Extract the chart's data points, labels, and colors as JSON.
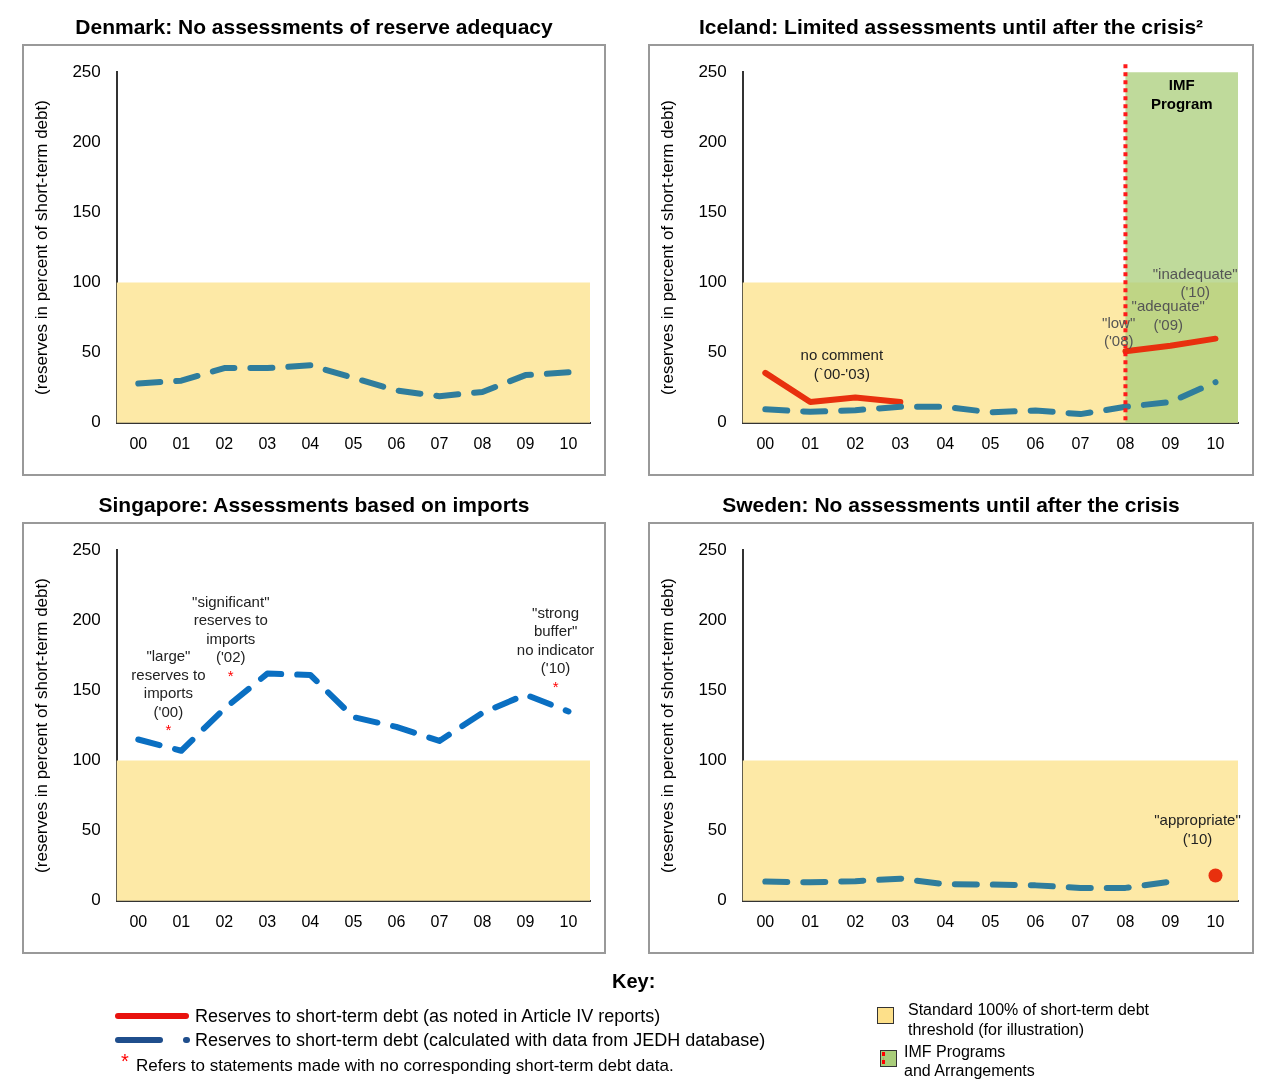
{
  "chart_data": [
    {
      "type": "line",
      "title": "Denmark: No assessments of reserve adequacy",
      "ylabel": "(reserves in percent of short-term debt)",
      "categories": [
        "00",
        "01",
        "02",
        "03",
        "04",
        "05",
        "06",
        "07",
        "08",
        "09",
        "10"
      ],
      "series": [
        {
          "type": "line",
          "color": "#2f7d9c",
          "line_style": "dashed",
          "values": [
            28,
            30,
            39,
            39,
            41,
            32,
            23,
            19,
            22,
            34,
            36
          ]
        }
      ],
      "ylim": [
        0,
        250
      ],
      "yticks": [
        0,
        50,
        100,
        150,
        200,
        250
      ],
      "bands": [
        {
          "axis": "y",
          "from": 0,
          "to": 100,
          "color": "#fde9a6"
        }
      ]
    },
    {
      "type": "line",
      "title": "Iceland: Limited assessments until after the crisis²",
      "ylabel": "(reserves in percent of short-term debt)",
      "categories": [
        "00",
        "01",
        "02",
        "03",
        "04",
        "05",
        "06",
        "07",
        "08",
        "09",
        "10"
      ],
      "series": [
        {
          "type": "line",
          "color": "#2f7d9c",
          "line_style": "dashed",
          "values": [
            9.6,
            7.8,
            9,
            11.4,
            11.4,
            7.5,
            8.8,
            6.2,
            11.4,
            14.8,
            29
          ]
        },
        {
          "type": "line",
          "color": "#e8300e",
          "line_style": "solid",
          "values": [
            35.6,
            14.8,
            18,
            14.8,
            null,
            null,
            null,
            null,
            51,
            55,
            60
          ]
        }
      ],
      "ylim": [
        0,
        250
      ],
      "yticks": [
        0,
        50,
        100,
        150,
        200,
        250
      ],
      "bands": [
        {
          "axis": "y",
          "from": 0,
          "to": 100,
          "color": "#fde9a6"
        },
        {
          "axis": "x",
          "from": "08",
          "to": "10",
          "color": "#a9cd7a",
          "label": "IMF\nProgram"
        }
      ],
      "ref_lines": [
        {
          "axis": "x",
          "value": "08",
          "color": "#ff1a1a",
          "line_style": "dotted"
        }
      ],
      "annotations": [
        "no comment\n(`00-'03)",
        "\"low\"\n('08)",
        "\"adequate\"\n('09)",
        "\"inadequate\"\n('10)"
      ]
    },
    {
      "type": "line",
      "title": "Singapore: Assessments based on imports",
      "ylabel": "(reserves in percent of short-term debt)",
      "categories": [
        "00",
        "01",
        "02",
        "03",
        "04",
        "05",
        "06",
        "07",
        "08",
        "09",
        "10"
      ],
      "series": [
        {
          "type": "line",
          "color": "#0a6fc2",
          "line_style": "dashed",
          "values": [
            115,
            107,
            137,
            162,
            161,
            131,
            124,
            114,
            134,
            147,
            135
          ]
        }
      ],
      "ylim": [
        0,
        250
      ],
      "yticks": [
        0,
        50,
        100,
        150,
        200,
        250
      ],
      "bands": [
        {
          "axis": "y",
          "from": 0,
          "to": 100,
          "color": "#fde9a6"
        }
      ],
      "annotations": [
        "\"large\"\nreserves to\nimports\n('00)\n*",
        "\"significant\"\nreserves to\nimports\n('02)\n*",
        "\"strong\nbuffer\"\nno indicator\n('10)\n*"
      ]
    },
    {
      "type": "line",
      "title": "Sweden: No assessments until after the crisis",
      "ylabel": "(reserves in percent of short-term debt)",
      "categories": [
        "00",
        "01",
        "02",
        "03",
        "04",
        "05",
        "06",
        "07",
        "08",
        "09",
        "10"
      ],
      "series": [
        {
          "type": "line",
          "color": "#2f7d9c",
          "line_style": "dashed",
          "values": [
            13.7,
            13.2,
            14,
            15.8,
            11.8,
            11.6,
            11,
            9.2,
            9.2,
            13.7,
            null
          ]
        },
        {
          "type": "scatter",
          "color": "#e8300e",
          "marker": "circle",
          "x": [
            "10"
          ],
          "values": [
            18
          ]
        }
      ],
      "ylim": [
        0,
        250
      ],
      "yticks": [
        0,
        50,
        100,
        150,
        200,
        250
      ],
      "bands": [
        {
          "axis": "y",
          "from": 0,
          "to": 100,
          "color": "#fde9a6"
        }
      ],
      "annotations": [
        "\"appropriate\"\n('10)"
      ]
    },
    {
      "type": "other",
      "title": "Key:",
      "annotations": [
        "Reserves to short-term debt (as noted in Article IV reports)",
        "Reserves to short-term debt (calculated with data from JEDH database)",
        "*",
        "Refers to statements made with no corresponding short-term debt data.",
        "Standard 100% of short-term debt\nthreshold (for illustration)",
        "IMF Programs\nand Arrangements"
      ]
    }
  ]
}
